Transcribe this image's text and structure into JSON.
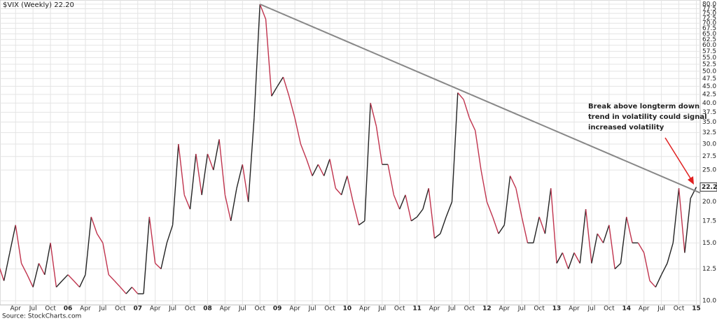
{
  "chart_data": {
    "type": "line",
    "title": "$VIX (Weekly) 22.20",
    "source": "Source: StockCharts.com",
    "log_scale": true,
    "grid": true,
    "up_color": "#222222",
    "down_color": "#c0334d",
    "last_label": "22.20",
    "annotation": [
      "Break above longterm down",
      "trend in volatility could signal",
      "increased volatility"
    ],
    "trendline": {
      "values": [
        80,
        21.3
      ],
      "color": "#888888"
    },
    "categories": [
      null,
      null,
      null,
      "Apr",
      null,
      null,
      "Jul",
      null,
      null,
      "Oct",
      null,
      null,
      "06",
      null,
      null,
      "Apr",
      null,
      null,
      "Jul",
      null,
      null,
      "Oct",
      null,
      null,
      "07",
      null,
      null,
      "Apr",
      null,
      null,
      "Jul",
      null,
      null,
      "Oct",
      null,
      null,
      "08",
      null,
      null,
      "Apr",
      null,
      null,
      "Jul",
      null,
      null,
      "Oct",
      null,
      null,
      "09",
      null,
      null,
      "Apr",
      null,
      null,
      "Jul",
      null,
      null,
      "Oct",
      null,
      null,
      "10",
      null,
      null,
      "Apr",
      null,
      null,
      "Jul",
      null,
      null,
      "Oct",
      null,
      null,
      "11",
      null,
      null,
      "Apr",
      null,
      null,
      "Jul",
      null,
      null,
      "Oct",
      null,
      null,
      "12",
      null,
      null,
      "Apr",
      null,
      null,
      "Jul",
      null,
      null,
      "Oct",
      null,
      null,
      "13",
      null,
      null,
      "Apr",
      null,
      null,
      "Jul",
      null,
      null,
      "Oct",
      null,
      null,
      "14",
      null,
      null,
      "Apr",
      null,
      null,
      "Jul",
      null,
      null,
      "Oct",
      null,
      null,
      "15"
    ],
    "series": [
      {
        "name": "$VIX",
        "values": [
          13,
          11.5,
          14,
          17,
          13,
          12,
          11,
          13,
          12,
          15,
          11,
          11.5,
          12,
          11.5,
          11,
          12,
          18,
          16,
          15,
          12,
          11.5,
          11,
          10.5,
          11,
          10.5,
          10.5,
          18,
          13,
          12.5,
          15,
          17,
          30,
          21,
          19,
          28,
          21,
          28,
          25,
          31,
          21,
          17.5,
          22,
          26,
          20,
          36,
          80,
          72,
          42,
          45,
          48,
          42,
          36,
          30,
          27,
          24,
          26,
          24,
          27,
          22,
          21,
          24,
          20,
          17,
          17.5,
          40,
          34,
          26,
          26,
          21,
          19,
          21,
          17.5,
          18,
          19,
          22,
          15.5,
          16,
          18,
          20,
          43,
          41,
          36,
          33,
          25,
          20,
          18,
          16,
          17,
          24,
          22,
          18,
          15,
          15,
          18,
          16,
          22,
          13,
          14,
          12.5,
          14,
          13,
          19,
          13,
          16,
          15,
          17,
          12.5,
          13,
          18,
          15,
          15,
          14,
          11.5,
          11,
          12,
          13,
          15,
          22,
          14,
          20.5,
          22.2
        ]
      }
    ],
    "ylim": [
      10,
      80
    ],
    "yticks": [
      {
        "value": 10,
        "label": "10.0"
      },
      {
        "value": 12.5,
        "label": "12.5"
      },
      {
        "value": 15,
        "label": "15.0"
      },
      {
        "value": 17.5,
        "label": "17.5"
      },
      {
        "value": 20,
        "label": "20.0"
      },
      {
        "value": 25,
        "label": "25.0"
      },
      {
        "value": 27.5,
        "label": "27.5"
      },
      {
        "value": 30,
        "label": "30.0"
      },
      {
        "value": 32.5,
        "label": "32.5"
      },
      {
        "value": 35,
        "label": "35.0"
      },
      {
        "value": 37.5,
        "label": "37.5"
      },
      {
        "value": 40,
        "label": "40.0"
      },
      {
        "value": 42.5,
        "label": "42.5"
      },
      {
        "value": 45,
        "label": "45.0"
      },
      {
        "value": 47.5,
        "label": "47.5"
      },
      {
        "value": 50,
        "label": "50.0"
      },
      {
        "value": 52.5,
        "label": "52.5"
      },
      {
        "value": 55,
        "label": "55.0"
      },
      {
        "value": 57.5,
        "label": "57.5"
      },
      {
        "value": 60,
        "label": "60.0"
      },
      {
        "value": 62.5,
        "label": "62.5"
      },
      {
        "value": 65,
        "label": "65.0"
      },
      {
        "value": 67.5,
        "label": "67.5"
      },
      {
        "value": 70,
        "label": "70.0"
      },
      {
        "value": 72.5,
        "label": "72.5"
      },
      {
        "value": 75,
        "label": "75.0"
      },
      {
        "value": 77.5,
        "label": "77.5"
      },
      {
        "value": 80,
        "label": "80.0"
      }
    ]
  }
}
